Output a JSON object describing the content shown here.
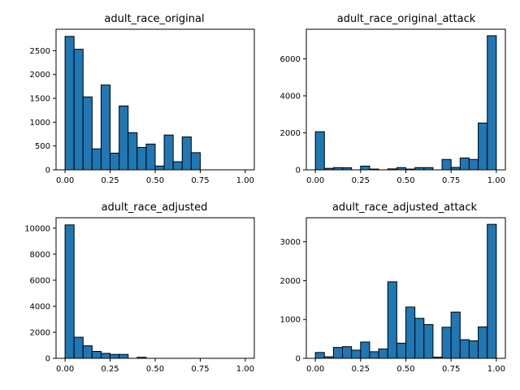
{
  "chart_data": [
    {
      "type": "bar",
      "title": "adult_race_original",
      "xlabel": "",
      "ylabel": "",
      "bin_edges": [
        0,
        0.05,
        0.1,
        0.15,
        0.2,
        0.25,
        0.3,
        0.35,
        0.4,
        0.45,
        0.5,
        0.55,
        0.6,
        0.65,
        0.7,
        0.75,
        0.8,
        0.85,
        0.9,
        0.95,
        1.0
      ],
      "values": [
        2800,
        2530,
        1530,
        440,
        1780,
        350,
        1340,
        780,
        470,
        540,
        80,
        730,
        170,
        690,
        360,
        0,
        0,
        0,
        0,
        0
      ],
      "xlim": [
        -0.05,
        1.05
      ],
      "ylim": [
        0,
        2950
      ],
      "xticks": [
        0,
        0.25,
        0.5,
        0.75,
        1.0
      ],
      "xtick_labels": [
        "0.00",
        "0.25",
        "0.50",
        "0.75",
        "1.00"
      ],
      "yticks": [
        0,
        500,
        1000,
        1500,
        2000,
        2500
      ],
      "ytick_labels": [
        "0",
        "500",
        "1000",
        "1500",
        "2000",
        "2500"
      ],
      "bar_color": "#1f77b4",
      "edge_color": "#000000",
      "grid": false
    },
    {
      "type": "bar",
      "title": "adult_race_original_attack",
      "xlabel": "",
      "ylabel": "",
      "bin_edges": [
        0,
        0.05,
        0.1,
        0.15,
        0.2,
        0.25,
        0.3,
        0.35,
        0.4,
        0.45,
        0.5,
        0.55,
        0.6,
        0.65,
        0.7,
        0.75,
        0.8,
        0.85,
        0.9,
        0.95,
        1.0
      ],
      "values": [
        2060,
        80,
        120,
        110,
        0,
        200,
        40,
        0,
        50,
        120,
        40,
        120,
        120,
        0,
        560,
        130,
        640,
        560,
        2530,
        7250
      ],
      "xlim": [
        -0.05,
        1.05
      ],
      "ylim": [
        0,
        7600
      ],
      "xticks": [
        0,
        0.25,
        0.5,
        0.75,
        1.0
      ],
      "xtick_labels": [
        "0.00",
        "0.25",
        "0.50",
        "0.75",
        "1.00"
      ],
      "yticks": [
        0,
        2000,
        4000,
        6000
      ],
      "ytick_labels": [
        "0",
        "2000",
        "4000",
        "6000"
      ],
      "bar_color": "#1f77b4",
      "edge_color": "#000000",
      "grid": false
    },
    {
      "type": "bar",
      "title": "adult_race_adjusted",
      "xlabel": "",
      "ylabel": "",
      "bin_edges": [
        0,
        0.05,
        0.1,
        0.15,
        0.2,
        0.25,
        0.3,
        0.35,
        0.4,
        0.45,
        0.5,
        0.55,
        0.6,
        0.65,
        0.7,
        0.75,
        0.8,
        0.85,
        0.9,
        0.95,
        1.0
      ],
      "values": [
        10250,
        1620,
        960,
        530,
        380,
        300,
        300,
        0,
        80,
        0,
        0,
        0,
        0,
        0,
        0,
        0,
        0,
        0,
        0,
        0
      ],
      "xlim": [
        -0.05,
        1.05
      ],
      "ylim": [
        0,
        10800
      ],
      "xticks": [
        0,
        0.25,
        0.5,
        0.75,
        1.0
      ],
      "xtick_labels": [
        "0.00",
        "0.25",
        "0.50",
        "0.75",
        "1.00"
      ],
      "yticks": [
        0,
        2000,
        4000,
        6000,
        8000,
        10000
      ],
      "ytick_labels": [
        "0",
        "2000",
        "4000",
        "6000",
        "8000",
        "10000"
      ],
      "bar_color": "#1f77b4",
      "edge_color": "#000000",
      "grid": false
    },
    {
      "type": "bar",
      "title": "adult_race_adjusted_attack",
      "xlabel": "",
      "ylabel": "",
      "bin_edges": [
        0,
        0.05,
        0.1,
        0.15,
        0.2,
        0.25,
        0.3,
        0.35,
        0.4,
        0.45,
        0.5,
        0.55,
        0.6,
        0.65,
        0.7,
        0.75,
        0.8,
        0.85,
        0.9,
        0.95,
        1.0
      ],
      "values": [
        150,
        40,
        280,
        300,
        210,
        420,
        170,
        240,
        1970,
        390,
        1320,
        1030,
        870,
        30,
        800,
        1190,
        480,
        450,
        810,
        3450
      ],
      "xlim": [
        -0.05,
        1.05
      ],
      "ylim": [
        0,
        3620
      ],
      "xticks": [
        0,
        0.25,
        0.5,
        0.75,
        1.0
      ],
      "xtick_labels": [
        "0.00",
        "0.25",
        "0.50",
        "0.75",
        "1.00"
      ],
      "yticks": [
        0,
        1000,
        2000,
        3000
      ],
      "ytick_labels": [
        "0",
        "1000",
        "2000",
        "3000"
      ],
      "bar_color": "#1f77b4",
      "edge_color": "#000000",
      "grid": false
    }
  ]
}
